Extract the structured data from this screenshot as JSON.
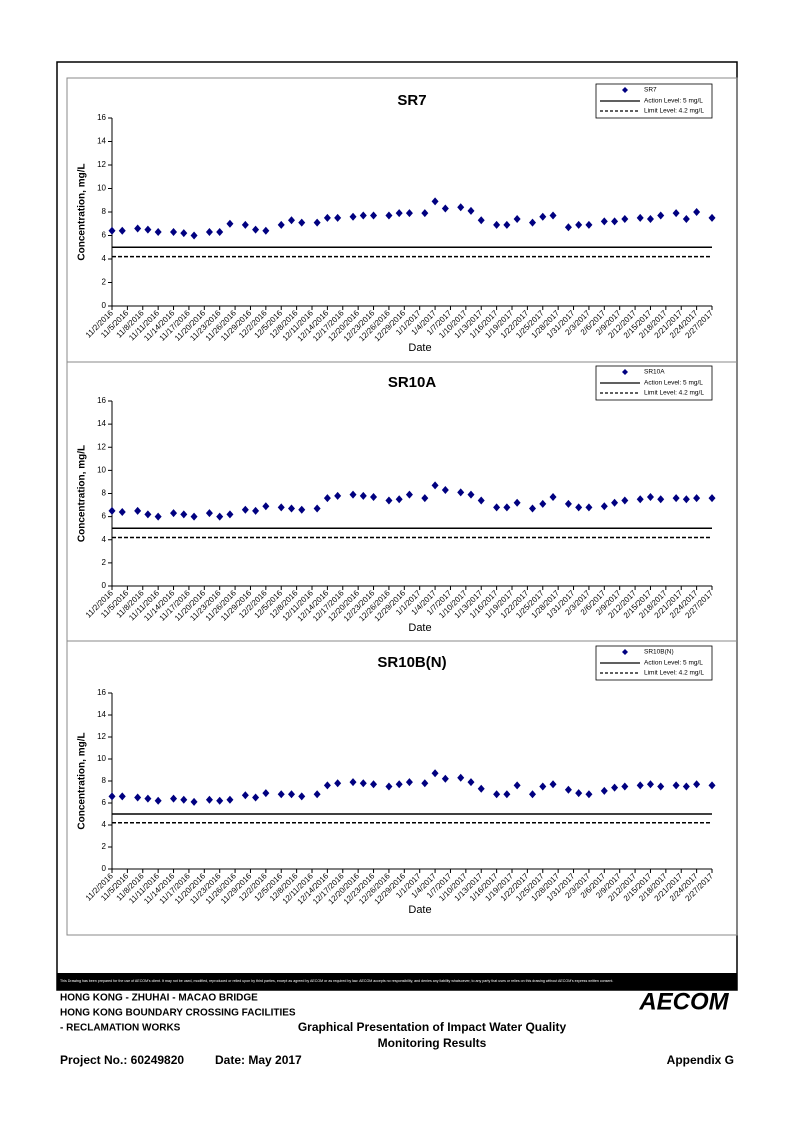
{
  "chart_data": [
    {
      "type": "scatter",
      "title": "SR7",
      "xlabel": "Date",
      "ylabel": "Concentration, mg/L",
      "xlim": [
        "11/2/2016",
        "2/27/2017"
      ],
      "xticks": [
        "11/2/2016",
        "11/5/2016",
        "11/8/2016",
        "11/11/2016",
        "11/14/2016",
        "11/17/2016",
        "11/20/2016",
        "11/23/2016",
        "11/26/2016",
        "11/29/2016",
        "12/2/2016",
        "12/5/2016",
        "12/8/2016",
        "12/11/2016",
        "12/14/2016",
        "12/17/2016",
        "12/20/2016",
        "12/23/2016",
        "12/26/2016",
        "12/29/2016",
        "1/1/2017",
        "1/4/2017",
        "1/7/2017",
        "1/10/2017",
        "1/13/2017",
        "1/16/2017",
        "1/19/2017",
        "1/22/2017",
        "1/25/2017",
        "1/28/2017",
        "1/31/2017",
        "2/3/2017",
        "2/6/2017",
        "2/9/2017",
        "2/12/2017",
        "2/15/2017",
        "2/18/2017",
        "2/21/2017",
        "2/24/2017",
        "2/27/2017"
      ],
      "ylim": [
        0,
        16
      ],
      "yticks": [
        0,
        2,
        4,
        6,
        8,
        10,
        12,
        14,
        16
      ],
      "x": [
        "11/2/2016",
        "11/4/2016",
        "11/7/2016",
        "11/9/2016",
        "11/11/2016",
        "11/14/2016",
        "11/16/2016",
        "11/18/2016",
        "11/21/2016",
        "11/23/2016",
        "11/25/2016",
        "11/28/2016",
        "11/30/2016",
        "12/2/2016",
        "12/5/2016",
        "12/7/2016",
        "12/9/2016",
        "12/12/2016",
        "12/14/2016",
        "12/16/2016",
        "12/19/2016",
        "12/21/2016",
        "12/23/2016",
        "12/26/2016",
        "12/28/2016",
        "12/30/2016",
        "1/2/2017",
        "1/4/2017",
        "1/6/2017",
        "1/9/2017",
        "1/11/2017",
        "1/13/2017",
        "1/16/2017",
        "1/18/2017",
        "1/20/2017",
        "1/23/2017",
        "1/25/2017",
        "1/27/2017",
        "1/30/2017",
        "2/1/2017",
        "2/3/2017",
        "2/6/2017",
        "2/8/2017",
        "2/10/2017",
        "2/13/2017",
        "2/15/2017",
        "2/17/2017",
        "2/20/2017",
        "2/22/2017",
        "2/24/2017",
        "2/27/2017"
      ],
      "series": [
        {
          "name": "SR7",
          "color": "#000080",
          "values": [
            6.4,
            6.4,
            6.6,
            6.5,
            6.3,
            6.3,
            6.2,
            6.0,
            6.3,
            6.3,
            7.0,
            6.9,
            6.5,
            6.4,
            6.9,
            7.3,
            7.1,
            7.1,
            7.5,
            7.5,
            7.6,
            7.7,
            7.7,
            7.7,
            7.9,
            7.9,
            7.9,
            8.9,
            8.3,
            8.4,
            8.1,
            7.3,
            6.9,
            6.9,
            7.4,
            7.1,
            7.6,
            7.7,
            6.7,
            6.9,
            6.9,
            7.2,
            7.2,
            7.4,
            7.5,
            7.4,
            7.7,
            7.9,
            7.4,
            8.0,
            7.5
          ]
        }
      ],
      "reference_lines": [
        {
          "name": "Action Level: 5 mg/L",
          "value": 5,
          "style": "solid"
        },
        {
          "name": "Limit Level: 4.2 mg/L",
          "value": 4.2,
          "style": "dashed"
        }
      ],
      "legend": "upper right"
    },
    {
      "type": "scatter",
      "title": "SR10A",
      "xlabel": "Date",
      "ylabel": "Concentration, mg/L",
      "xlim": [
        "11/2/2016",
        "2/27/2017"
      ],
      "xticks": [
        "11/2/2016",
        "11/5/2016",
        "11/8/2016",
        "11/11/2016",
        "11/14/2016",
        "11/17/2016",
        "11/20/2016",
        "11/23/2016",
        "11/26/2016",
        "11/29/2016",
        "12/2/2016",
        "12/5/2016",
        "12/8/2016",
        "12/11/2016",
        "12/14/2016",
        "12/17/2016",
        "12/20/2016",
        "12/23/2016",
        "12/26/2016",
        "12/29/2016",
        "1/1/2017",
        "1/4/2017",
        "1/7/2017",
        "1/10/2017",
        "1/13/2017",
        "1/16/2017",
        "1/19/2017",
        "1/22/2017",
        "1/25/2017",
        "1/28/2017",
        "1/31/2017",
        "2/3/2017",
        "2/6/2017",
        "2/9/2017",
        "2/12/2017",
        "2/15/2017",
        "2/18/2017",
        "2/21/2017",
        "2/24/2017",
        "2/27/2017"
      ],
      "ylim": [
        0,
        16
      ],
      "yticks": [
        0,
        2,
        4,
        6,
        8,
        10,
        12,
        14,
        16
      ],
      "x": [
        "11/2/2016",
        "11/4/2016",
        "11/7/2016",
        "11/9/2016",
        "11/11/2016",
        "11/14/2016",
        "11/16/2016",
        "11/18/2016",
        "11/21/2016",
        "11/23/2016",
        "11/25/2016",
        "11/28/2016",
        "11/30/2016",
        "12/2/2016",
        "12/5/2016",
        "12/7/2016",
        "12/9/2016",
        "12/12/2016",
        "12/14/2016",
        "12/16/2016",
        "12/19/2016",
        "12/21/2016",
        "12/23/2016",
        "12/26/2016",
        "12/28/2016",
        "12/30/2016",
        "1/2/2017",
        "1/4/2017",
        "1/6/2017",
        "1/9/2017",
        "1/11/2017",
        "1/13/2017",
        "1/16/2017",
        "1/18/2017",
        "1/20/2017",
        "1/23/2017",
        "1/25/2017",
        "1/27/2017",
        "1/30/2017",
        "2/1/2017",
        "2/3/2017",
        "2/6/2017",
        "2/8/2017",
        "2/10/2017",
        "2/13/2017",
        "2/15/2017",
        "2/17/2017",
        "2/20/2017",
        "2/22/2017",
        "2/24/2017",
        "2/27/2017"
      ],
      "series": [
        {
          "name": "SR10A",
          "color": "#000080",
          "values": [
            6.5,
            6.4,
            6.5,
            6.2,
            6.0,
            6.3,
            6.2,
            6.0,
            6.3,
            6.0,
            6.2,
            6.6,
            6.5,
            6.9,
            6.8,
            6.7,
            6.6,
            6.7,
            7.6,
            7.8,
            7.9,
            7.8,
            7.7,
            7.4,
            7.5,
            7.9,
            7.6,
            8.7,
            8.3,
            8.1,
            7.9,
            7.4,
            6.8,
            6.8,
            7.2,
            6.7,
            7.1,
            7.7,
            7.1,
            6.8,
            6.8,
            6.9,
            7.2,
            7.4,
            7.5,
            7.7,
            7.5,
            7.6,
            7.5,
            7.6,
            7.6
          ]
        }
      ],
      "reference_lines": [
        {
          "name": "Action Level: 5 mg/L",
          "value": 5,
          "style": "solid"
        },
        {
          "name": "Limit Level: 4.2 mg/L",
          "value": 4.2,
          "style": "dashed"
        }
      ],
      "legend": "upper right"
    },
    {
      "type": "scatter",
      "title": "SR10B(N)",
      "xlabel": "Date",
      "ylabel": "Concentration, mg/L",
      "xlim": [
        "11/2/2016",
        "2/27/2017"
      ],
      "xticks": [
        "11/2/2016",
        "11/5/2016",
        "11/8/2016",
        "11/11/2016",
        "11/14/2016",
        "11/17/2016",
        "11/20/2016",
        "11/23/2016",
        "11/26/2016",
        "11/29/2016",
        "12/2/2016",
        "12/5/2016",
        "12/8/2016",
        "12/11/2016",
        "12/14/2016",
        "12/17/2016",
        "12/20/2016",
        "12/23/2016",
        "12/26/2016",
        "12/29/2016",
        "1/1/2017",
        "1/4/2017",
        "1/7/2017",
        "1/10/2017",
        "1/13/2017",
        "1/16/2017",
        "1/19/2017",
        "1/22/2017",
        "1/25/2017",
        "1/28/2017",
        "1/31/2017",
        "2/3/2017",
        "2/6/2017",
        "2/9/2017",
        "2/12/2017",
        "2/15/2017",
        "2/18/2017",
        "2/21/2017",
        "2/24/2017",
        "2/27/2017"
      ],
      "ylim": [
        0,
        16
      ],
      "yticks": [
        0,
        2,
        4,
        6,
        8,
        10,
        12,
        14,
        16
      ],
      "x": [
        "11/2/2016",
        "11/4/2016",
        "11/7/2016",
        "11/9/2016",
        "11/11/2016",
        "11/14/2016",
        "11/16/2016",
        "11/18/2016",
        "11/21/2016",
        "11/23/2016",
        "11/25/2016",
        "11/28/2016",
        "11/30/2016",
        "12/2/2016",
        "12/5/2016",
        "12/7/2016",
        "12/9/2016",
        "12/12/2016",
        "12/14/2016",
        "12/16/2016",
        "12/19/2016",
        "12/21/2016",
        "12/23/2016",
        "12/26/2016",
        "12/28/2016",
        "12/30/2016",
        "1/2/2017",
        "1/4/2017",
        "1/6/2017",
        "1/9/2017",
        "1/11/2017",
        "1/13/2017",
        "1/16/2017",
        "1/18/2017",
        "1/20/2017",
        "1/23/2017",
        "1/25/2017",
        "1/27/2017",
        "1/30/2017",
        "2/1/2017",
        "2/3/2017",
        "2/6/2017",
        "2/8/2017",
        "2/10/2017",
        "2/13/2017",
        "2/15/2017",
        "2/17/2017",
        "2/20/2017",
        "2/22/2017",
        "2/24/2017",
        "2/27/2017"
      ],
      "series": [
        {
          "name": "SR10B(N)",
          "color": "#000080",
          "values": [
            6.6,
            6.6,
            6.5,
            6.4,
            6.2,
            6.4,
            6.3,
            6.1,
            6.3,
            6.2,
            6.3,
            6.7,
            6.5,
            6.9,
            6.8,
            6.8,
            6.6,
            6.8,
            7.6,
            7.8,
            7.9,
            7.8,
            7.7,
            7.5,
            7.7,
            7.9,
            7.8,
            8.7,
            8.2,
            8.3,
            7.9,
            7.3,
            6.8,
            6.8,
            7.6,
            6.8,
            7.5,
            7.7,
            7.2,
            6.9,
            6.8,
            7.1,
            7.4,
            7.5,
            7.6,
            7.7,
            7.5,
            7.6,
            7.5,
            7.7,
            7.6
          ]
        }
      ],
      "reference_lines": [
        {
          "name": "Action Level: 5 mg/L",
          "value": 5,
          "style": "solid"
        },
        {
          "name": "Limit Level: 4.2 mg/L",
          "value": 4.2,
          "style": "dashed"
        }
      ],
      "legend": "upper right"
    }
  ],
  "footer": {
    "disclaimer": "This Drawing has been prepared for the use of AECOM's client. It may not be used, modified, reproduced or relied upon by third parties, except as agreed by AECOM or as required by law. AECOM accepts no responsibility, and denies any liability whatsoever, to any party that uses or relies on this drawing without AECOM's express written consent.",
    "project_lines": [
      "HONG KONG - ZHUHAI - MACAO BRIDGE",
      "HONG KONG BOUNDARY CROSSING FACILITIES",
      "- RECLAMATION WORKS"
    ],
    "logo": "AECOM",
    "title_lines": [
      "Graphical Presentation of Impact Water Quality",
      "Monitoring Results"
    ],
    "project_no": "Project No.: 60249820",
    "date": "Date: May 2017",
    "appendix": "Appendix G"
  }
}
